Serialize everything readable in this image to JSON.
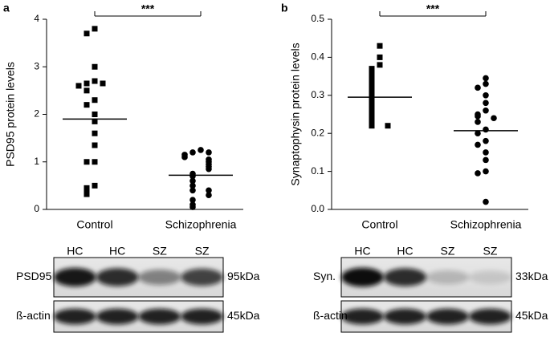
{
  "chart_data": [
    {
      "type": "scatter",
      "panel_label": "a",
      "ylabel": "PSD95 protein levels",
      "annotation": "***",
      "categories": [
        "Control",
        "Schizophrenia"
      ],
      "markers": [
        "square",
        "circle"
      ],
      "color": "#000000",
      "values": [
        [
          3.8,
          3.7,
          3.0,
          2.7,
          2.65,
          2.65,
          2.6,
          2.5,
          2.3,
          2.2,
          2.0,
          1.85,
          1.6,
          1.35,
          1.0,
          1.0,
          0.5,
          0.45,
          0.35,
          0.32
        ],
        [
          1.25,
          1.2,
          1.2,
          1.15,
          1.1,
          1.05,
          1.0,
          0.95,
          0.9,
          0.85,
          0.75,
          0.7,
          0.6,
          0.5,
          0.4,
          0.4,
          0.3,
          0.2,
          0.1,
          0.05
        ]
      ],
      "means": [
        1.9,
        0.72
      ],
      "ylim": [
        0,
        4
      ],
      "yticks": [
        0,
        1,
        2,
        3,
        4
      ]
    },
    {
      "type": "scatter",
      "panel_label": "b",
      "ylabel": "Synaptophysin protein levels",
      "annotation": "***",
      "categories": [
        "Control",
        "Schizophrenia"
      ],
      "markers": [
        "square",
        "circle"
      ],
      "color": "#000000",
      "values": [
        [
          0.43,
          0.4,
          0.38,
          0.37,
          0.36,
          0.35,
          0.34,
          0.33,
          0.32,
          0.31,
          0.3,
          0.29,
          0.28,
          0.27,
          0.26,
          0.25,
          0.24,
          0.23,
          0.22,
          0.22
        ],
        [
          0.345,
          0.33,
          0.32,
          0.3,
          0.28,
          0.26,
          0.25,
          0.245,
          0.24,
          0.23,
          0.21,
          0.2,
          0.18,
          0.17,
          0.15,
          0.13,
          0.1,
          0.095,
          0.02
        ]
      ],
      "means": [
        0.295,
        0.207
      ],
      "ylim": [
        0,
        0.5
      ],
      "yticks": [
        {
          "value": 0,
          "label": "0.0"
        },
        0.1,
        0.2,
        0.3,
        0.4,
        0.5
      ]
    }
  ],
  "blots": [
    {
      "lanes": [
        "HC",
        "HC",
        "SZ",
        "SZ"
      ],
      "rows": [
        {
          "label": "PSD95",
          "size": "95kDa"
        },
        {
          "label": "ß-actin",
          "size": "45kDa"
        }
      ]
    },
    {
      "lanes": [
        "HC",
        "HC",
        "SZ",
        "SZ"
      ],
      "rows": [
        {
          "label": "Syn.",
          "size": "33kDa"
        },
        {
          "label": "ß-actin",
          "size": "45kDa"
        }
      ]
    }
  ]
}
